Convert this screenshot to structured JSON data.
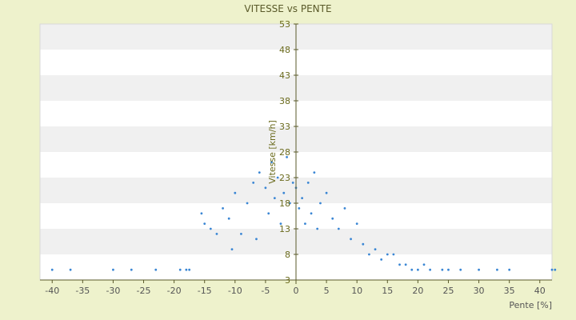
{
  "chart_data": {
    "type": "scatter",
    "title": "VITESSE vs PENTE",
    "xlabel": "Pente [%]",
    "ylabel": "Vitesse [km/h]",
    "xlim": [
      -42,
      42
    ],
    "ylim": [
      3,
      53
    ],
    "x_ticks": [
      -40,
      -35,
      -30,
      -25,
      -20,
      -15,
      -10,
      -5,
      0,
      5,
      10,
      15,
      20,
      25,
      30,
      35,
      40
    ],
    "y_ticks": [
      3,
      8,
      13,
      18,
      23,
      28,
      33,
      38,
      43,
      48,
      53
    ],
    "grid": "horizontal-bands",
    "legend": "none",
    "point_color": "#3a86d4",
    "point_color_secondary": "#8b8b2a",
    "series": [
      {
        "points": [
          [
            -40,
            5
          ],
          [
            -37,
            5
          ],
          [
            -30,
            5
          ],
          [
            -27,
            5
          ],
          [
            -23,
            5
          ],
          [
            -19,
            5
          ],
          [
            -18,
            5
          ],
          [
            -17.5,
            5
          ],
          [
            -15.5,
            16
          ],
          [
            -15,
            14
          ],
          [
            -14,
            13
          ],
          [
            -13,
            12
          ],
          [
            -12,
            17
          ],
          [
            -11,
            15
          ],
          [
            -10.5,
            9
          ],
          [
            -10,
            20
          ],
          [
            -9,
            12
          ],
          [
            -8,
            18
          ],
          [
            -7,
            22
          ],
          [
            -6.5,
            11
          ],
          [
            -6,
            24
          ],
          [
            -5,
            21
          ],
          [
            -4.5,
            16
          ],
          [
            -4,
            26
          ],
          [
            -3.5,
            19
          ],
          [
            -3,
            23
          ],
          [
            -2.5,
            14
          ],
          [
            -2,
            20
          ],
          [
            -1.5,
            27
          ],
          [
            -1,
            18
          ],
          [
            -0.5,
            22
          ],
          [
            0,
            21
          ],
          [
            0.5,
            17
          ],
          [
            1,
            19
          ],
          [
            1.5,
            14
          ],
          [
            2,
            22
          ],
          [
            2.5,
            16
          ],
          [
            3,
            24
          ],
          [
            3.5,
            13
          ],
          [
            4,
            18
          ],
          [
            5,
            20
          ],
          [
            6,
            15
          ],
          [
            7,
            13
          ],
          [
            8,
            17
          ],
          [
            9,
            11
          ],
          [
            10,
            14
          ],
          [
            11,
            10
          ],
          [
            12,
            8
          ],
          [
            13,
            9
          ],
          [
            14,
            7
          ],
          [
            15,
            8
          ],
          [
            16,
            8
          ],
          [
            17,
            6
          ],
          [
            18,
            6
          ],
          [
            19,
            5
          ],
          [
            20,
            5
          ],
          [
            21,
            6
          ],
          [
            22,
            5
          ],
          [
            24,
            5
          ],
          [
            25,
            5
          ],
          [
            27,
            5
          ],
          [
            30,
            5
          ],
          [
            33,
            5
          ],
          [
            35,
            5
          ],
          [
            42,
            5
          ],
          [
            42.5,
            5
          ]
        ]
      }
    ]
  }
}
